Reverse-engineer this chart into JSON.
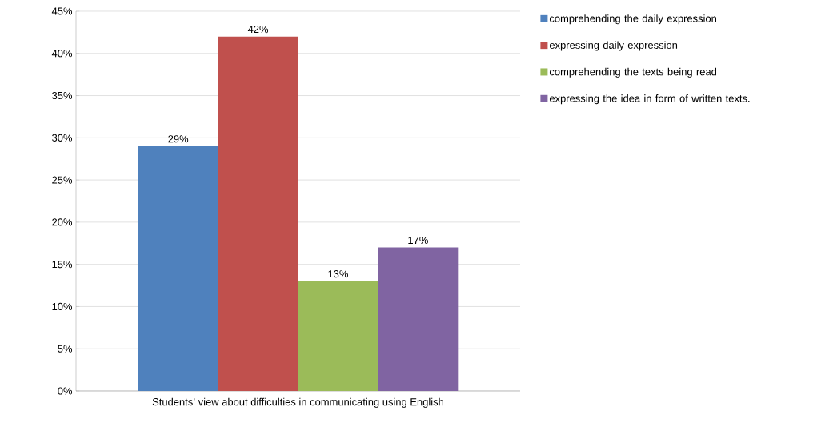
{
  "chart_data": {
    "type": "bar",
    "categories": [
      "Students’ view about difficulties in communicating using English"
    ],
    "series": [
      {
        "name": "comprehending the daily expression",
        "color": "#4f81bd",
        "values": [
          29
        ],
        "value_labels": [
          "29%"
        ]
      },
      {
        "name": "expressing daily expression",
        "color": "#c0504d",
        "values": [
          42
        ],
        "value_labels": [
          "42%"
        ]
      },
      {
        "name": "comprehending the texts being read",
        "color": "#9bbb59",
        "values": [
          13
        ],
        "value_labels": [
          "13%"
        ]
      },
      {
        "name": "expressing the idea in form of written texts.",
        "color": "#8064a2",
        "values": [
          17
        ],
        "value_labels": [
          "17%"
        ]
      }
    ],
    "ylim": [
      0,
      45
    ],
    "yticks": [
      {
        "value": 0,
        "label": "0%"
      },
      {
        "value": 5,
        "label": "5%"
      },
      {
        "value": 10,
        "label": "10%"
      },
      {
        "value": 15,
        "label": "15%"
      },
      {
        "value": 20,
        "label": "20%"
      },
      {
        "value": 25,
        "label": "25%"
      },
      {
        "value": 30,
        "label": "30%"
      },
      {
        "value": 35,
        "label": "35%"
      },
      {
        "value": 40,
        "label": "40%"
      },
      {
        "value": 45,
        "label": "45%"
      }
    ],
    "grid": "y",
    "legend": "right"
  }
}
